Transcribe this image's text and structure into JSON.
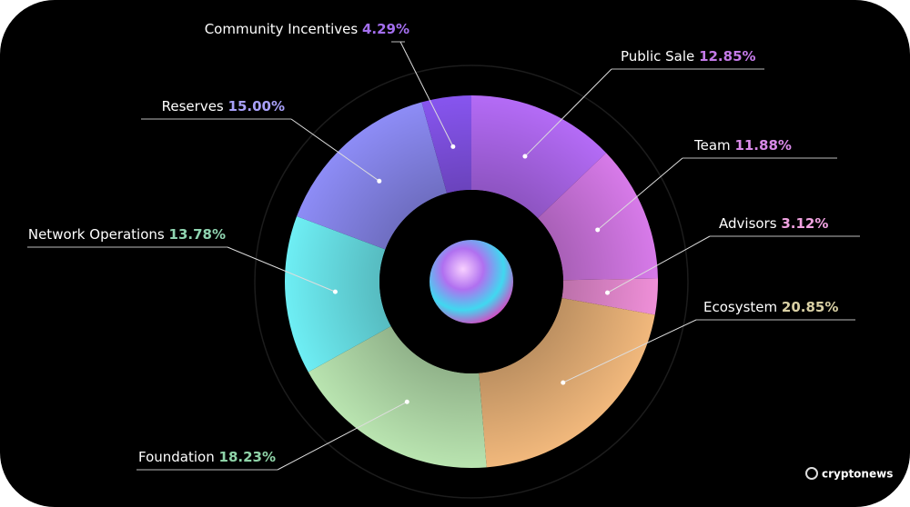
{
  "chart_data": {
    "type": "donut",
    "categories": [
      "Public Sale",
      "Team",
      "Advisors",
      "Ecosystem",
      "Foundation",
      "Network Operations",
      "Reserves",
      "Community Incentives"
    ],
    "values": [
      12.85,
      11.88,
      3.12,
      20.85,
      18.23,
      13.78,
      15.0,
      4.29
    ],
    "value_labels": [
      "12.85%",
      "11.88%",
      "3.12%",
      "20.85%",
      "18.23%",
      "13.78%",
      "15.00%",
      "4.29%"
    ],
    "colors": [
      "#b46bf6",
      "#d77ae9",
      "#ef8fd8",
      "#f1b87c",
      "#b9e4b0",
      "#6eeef4",
      "#8d8cf6",
      "#8755ef"
    ],
    "value_label_colors": [
      "#c47ae8",
      "#d98ae9",
      "#f0a2e0",
      "#d9d0a4",
      "#8fd4a8",
      "#8fd4b0",
      "#a8a0f8",
      "#a46ff0"
    ],
    "watermark": "cryptonews"
  }
}
